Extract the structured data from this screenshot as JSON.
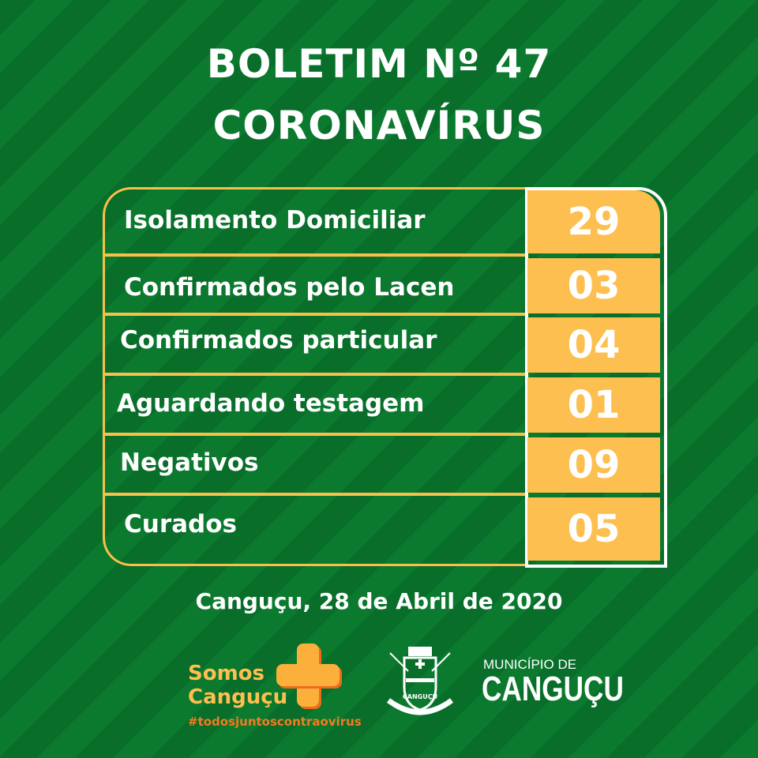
{
  "header": {
    "line1": "BOLETIM Nº 47",
    "line2": "CORONAVÍRUS"
  },
  "rows": [
    {
      "label": "Isolamento Domiciliar",
      "value": "29"
    },
    {
      "label": "Confirmados pelo Lacen",
      "value": "03"
    },
    {
      "label": "Confirmados particular",
      "value": "04"
    },
    {
      "label": "Aguardando testagem",
      "value": "01"
    },
    {
      "label": "Negativos",
      "value": "09"
    },
    {
      "label": "Curados",
      "value": "05"
    }
  ],
  "date": "Canguçu, 28 de Abril de 2020",
  "footer": {
    "campaign_line1": "Somos",
    "campaign_line2": "Canguçu",
    "hashtag": "#todosjuntoscontraovirus",
    "seal_text": "CANGUÇU",
    "municipio_line1": "MUNICÍPIO DE",
    "municipio_line2": "CANGUÇU"
  },
  "colors": {
    "background": "#0b7a2f",
    "accent": "#fdbf4f",
    "border": "#f8c04a",
    "orange": "#f47b20"
  }
}
